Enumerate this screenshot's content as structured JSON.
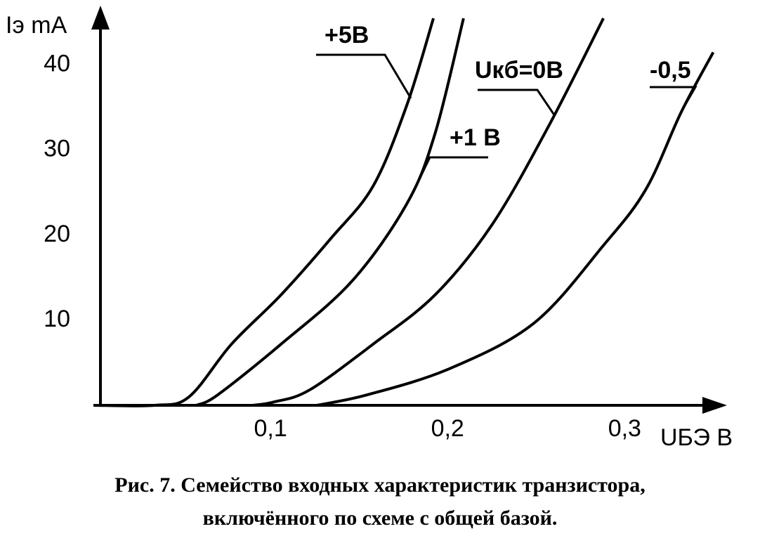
{
  "chart_data": {
    "type": "line",
    "title": "Рис. 7. Семейство входных характеристик транзистора,",
    "subtitle": "включённого по схеме с общей базой.",
    "y_label": "Iэ mA",
    "x_label": "UБЭ В",
    "xlim": [
      0,
      0.355
    ],
    "ylim": [
      0,
      46
    ],
    "xticks": [
      {
        "value": 0.1,
        "label": "0,1"
      },
      {
        "value": 0.2,
        "label": "0,2"
      },
      {
        "value": 0.3,
        "label": "0,3"
      }
    ],
    "yticks": [
      10,
      20,
      30,
      40
    ],
    "series": [
      {
        "name": "+5В",
        "color": "#000000",
        "x": [
          0,
          0.0345,
          0.054,
          0.078,
          0.106,
          0.134,
          0.158,
          0.177,
          0.192
        ],
        "values": [
          0,
          0,
          1,
          7.2,
          13,
          19.6,
          25.8,
          35.3,
          45.5
        ]
      },
      {
        "name": "+1 В",
        "color": "#000000",
        "x": [
          0.058,
          0.07,
          0.106,
          0.146,
          0.177,
          0.193,
          0.209
        ],
        "values": [
          0,
          1.2,
          7.2,
          14.6,
          23.7,
          32,
          45.5
        ]
      },
      {
        "name": "Uкб=0В",
        "color": "#000000",
        "x": [
          0.09,
          0.102,
          0.122,
          0.158,
          0.193,
          0.225,
          0.257,
          0.288
        ],
        "values": [
          0,
          0.4,
          1.8,
          7.2,
          13,
          21.2,
          32.8,
          45.5
        ]
      },
      {
        "name": "-0,5",
        "color": "#000000",
        "x": [
          0.126,
          0.154,
          0.201,
          0.249,
          0.288,
          0.312,
          0.332,
          0.35
        ],
        "values": [
          0,
          1.2,
          4.3,
          9.7,
          18.8,
          25.4,
          34.5,
          41.5
        ]
      }
    ]
  }
}
